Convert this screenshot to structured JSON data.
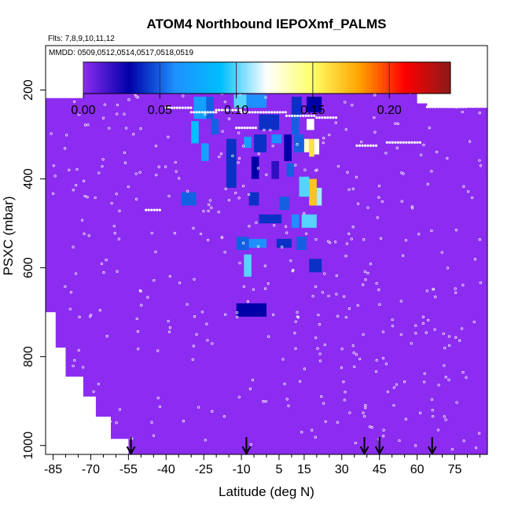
{
  "chart_data": {
    "type": "heatmap",
    "title": "ATOM4 Northbound IEPOXmf_PALMS",
    "flights_label": "Flts: 7,8,9,10,11,12",
    "dates_label": "MMDD: 0509,0512,0514,0517,0518,0519",
    "xlabel": "Latitude (deg N)",
    "ylabel": "PSXC (mbar)",
    "xlim": [
      -88,
      88
    ],
    "ylim": [
      1020,
      100
    ],
    "x_ticks": [
      -85,
      -70,
      -55,
      -40,
      -25,
      -10,
      5,
      15,
      30,
      45,
      60,
      75
    ],
    "x_tick_labels": [
      "-85",
      "-70",
      "-55",
      "-40",
      "-25",
      "-10",
      "5",
      "15",
      "30",
      "45",
      "60",
      "75"
    ],
    "y_ticks": [
      200,
      400,
      600,
      800,
      1000
    ],
    "y_tick_labels": [
      "200",
      "400",
      "600",
      "800",
      "1000"
    ],
    "colorbar": {
      "range": [
        0,
        0.24
      ],
      "ticks": [
        0.0,
        0.05,
        0.1,
        0.15,
        0.2
      ],
      "tick_labels": [
        "0.00",
        "0.05",
        "0.10",
        "0.15",
        "0.20"
      ],
      "stops": [
        "#8c2cf0",
        "#0000a8",
        "#1e90ff",
        "#00bfff",
        "#ffffff",
        "#ffff66",
        "#ffa500",
        "#ff0000",
        "#8b1a1a"
      ]
    },
    "background_value": 0.0,
    "arrow_latitudes": [
      -54,
      -8,
      39,
      45,
      66
    ],
    "cells": [
      {
        "lat": [
          -29,
          -24
        ],
        "p": [
          215,
          265
        ],
        "v": 0.07
      },
      {
        "lat": [
          -24,
          -21
        ],
        "p": [
          215,
          265
        ],
        "v": 0.05
      },
      {
        "lat": [
          -13,
          -8
        ],
        "p": [
          210,
          240
        ],
        "v": 0.1
      },
      {
        "lat": [
          -8,
          0
        ],
        "p": [
          210,
          240
        ],
        "v": 0.06
      },
      {
        "lat": [
          10,
          14
        ],
        "p": [
          215,
          260
        ],
        "v": 0.04
      },
      {
        "lat": [
          16,
          22
        ],
        "p": [
          215,
          250
        ],
        "v": 0.03
      },
      {
        "lat": [
          -30,
          -27
        ],
        "p": [
          270,
          320
        ],
        "v": 0.09
      },
      {
        "lat": [
          -22,
          -19
        ],
        "p": [
          265,
          300
        ],
        "v": 0.05
      },
      {
        "lat": [
          -3,
          5
        ],
        "p": [
          255,
          290
        ],
        "v": 0.04
      },
      {
        "lat": [
          10,
          13
        ],
        "p": [
          260,
          300
        ],
        "v": 0.05
      },
      {
        "lat": [
          16,
          19
        ],
        "p": [
          265,
          290
        ],
        "v": 0.12
      },
      {
        "lat": [
          -16,
          -12
        ],
        "p": [
          310,
          420
        ],
        "v": 0.04
      },
      {
        "lat": [
          -9,
          -6
        ],
        "p": [
          305,
          330
        ],
        "v": 0.07
      },
      {
        "lat": [
          -5,
          0
        ],
        "p": [
          300,
          340
        ],
        "v": 0.04
      },
      {
        "lat": [
          2,
          6
        ],
        "p": [
          300,
          320
        ],
        "v": 0.06
      },
      {
        "lat": [
          7,
          10
        ],
        "p": [
          300,
          360
        ],
        "v": 0.03
      },
      {
        "lat": [
          11,
          15
        ],
        "p": [
          300,
          340
        ],
        "v": 0.05
      },
      {
        "lat": [
          15,
          17
        ],
        "p": [
          310,
          340
        ],
        "v": 0.13
      },
      {
        "lat": [
          17,
          19
        ],
        "p": [
          310,
          350
        ],
        "v": 0.16
      },
      {
        "lat": [
          19,
          21
        ],
        "p": [
          310,
          345
        ],
        "v": 0.12
      },
      {
        "lat": [
          -26,
          -23
        ],
        "p": [
          320,
          360
        ],
        "v": 0.07
      },
      {
        "lat": [
          -34,
          -28
        ],
        "p": [
          430,
          460
        ],
        "v": 0.05
      },
      {
        "lat": [
          -6,
          -3
        ],
        "p": [
          350,
          400
        ],
        "v": 0.03
      },
      {
        "lat": [
          2,
          5
        ],
        "p": [
          360,
          400
        ],
        "v": 0.02
      },
      {
        "lat": [
          8,
          11
        ],
        "p": [
          365,
          395
        ],
        "v": 0.05
      },
      {
        "lat": [
          13,
          17
        ],
        "p": [
          395,
          440
        ],
        "v": 0.1
      },
      {
        "lat": [
          17,
          20
        ],
        "p": [
          400,
          460
        ],
        "v": 0.17
      },
      {
        "lat": [
          20,
          22
        ],
        "p": [
          420,
          460
        ],
        "v": 0.11
      },
      {
        "lat": [
          -7,
          -3
        ],
        "p": [
          430,
          460
        ],
        "v": 0.04
      },
      {
        "lat": [
          5,
          9
        ],
        "p": [
          440,
          470
        ],
        "v": 0.05
      },
      {
        "lat": [
          -3,
          6
        ],
        "p": [
          480,
          500
        ],
        "v": 0.04
      },
      {
        "lat": [
          10,
          13
        ],
        "p": [
          480,
          510
        ],
        "v": 0.06
      },
      {
        "lat": [
          14,
          20
        ],
        "p": [
          480,
          510
        ],
        "v": 0.1
      },
      {
        "lat": [
          -12,
          -7
        ],
        "p": [
          530,
          560
        ],
        "v": 0.05
      },
      {
        "lat": [
          -7,
          0
        ],
        "p": [
          535,
          555
        ],
        "v": 0.06
      },
      {
        "lat": [
          4,
          10
        ],
        "p": [
          535,
          555
        ],
        "v": 0.04
      },
      {
        "lat": [
          12,
          16
        ],
        "p": [
          530,
          560
        ],
        "v": 0.05
      },
      {
        "lat": [
          -9,
          -6
        ],
        "p": [
          570,
          620
        ],
        "v": 0.1
      },
      {
        "lat": [
          17,
          22
        ],
        "p": [
          580,
          610
        ],
        "v": 0.04
      },
      {
        "lat": [
          -12,
          0
        ],
        "p": [
          680,
          710
        ],
        "v": 0.03
      }
    ]
  }
}
